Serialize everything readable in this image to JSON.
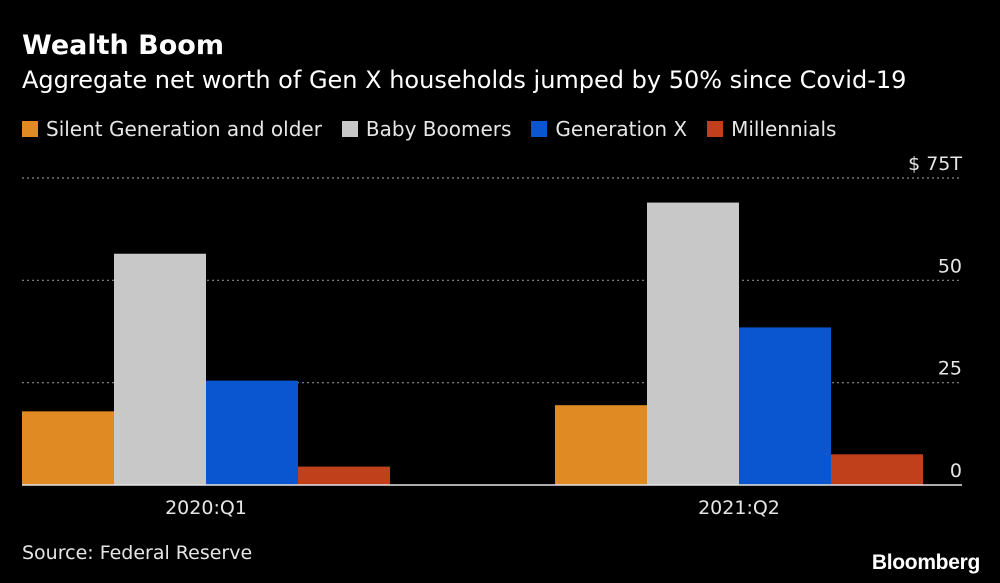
{
  "chart_data": {
    "type": "bar",
    "title": "Wealth Boom",
    "subtitle": "Aggregate net worth of Gen X households jumped by 50% since Covid-19",
    "categories": [
      "2020:Q1",
      "2021:Q2"
    ],
    "series": [
      {
        "name": "Silent Generation and older",
        "color": "#e08a24",
        "values": [
          18.0,
          19.5
        ]
      },
      {
        "name": "Baby Boomers",
        "color": "#c8c8c8",
        "values": [
          56.5,
          69.0
        ]
      },
      {
        "name": "Generation X",
        "color": "#0a56d0",
        "values": [
          25.5,
          38.5
        ]
      },
      {
        "name": "Millennials",
        "color": "#c0401c",
        "values": [
          4.5,
          7.5
        ]
      }
    ],
    "ylim": [
      0,
      75
    ],
    "yticks": [
      {
        "value": 75,
        "label": "$ 75T"
      },
      {
        "value": 50,
        "label": "50"
      },
      {
        "value": 25,
        "label": "25"
      },
      {
        "value": 0,
        "label": "0"
      }
    ],
    "grid": true,
    "legend_position": "top-left"
  },
  "source": "Source: Federal Reserve",
  "brand": "Bloomberg"
}
